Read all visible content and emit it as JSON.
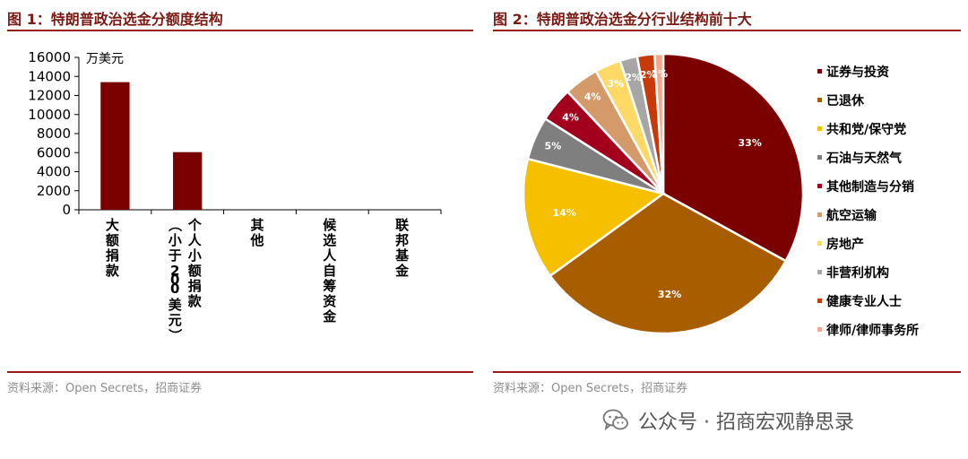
{
  "chart_data": [
    {
      "type": "bar",
      "title": "图 1：特朗普政治选金分额度结构",
      "unit_label": "万美元",
      "categories": [
        "大额捐款",
        "个人小额捐款（小于200 美元）",
        "其他",
        "候选人自筹资金",
        "联邦基金"
      ],
      "values": [
        13400,
        6050,
        0,
        0,
        0
      ],
      "ylim": [
        0,
        16000
      ],
      "yticks": [
        0,
        2000,
        4000,
        6000,
        8000,
        10000,
        12000,
        14000,
        16000
      ],
      "color": "#7b0000",
      "grid": false,
      "source": "资料来源：Open Secrets，招商证券"
    },
    {
      "type": "pie",
      "title": "图 2：特朗普政治选金分行业结构前十大",
      "labels": [
        "证券与投资",
        "已退休",
        "共和党/保守党",
        "石油与天然气",
        "其他制造与分销",
        "航空运输",
        "房地产",
        "非营利机构",
        "健康专业人士",
        "律师/律师事务所"
      ],
      "values": [
        33,
        32,
        14,
        5,
        4,
        4,
        3,
        2,
        2,
        1
      ],
      "value_labels": [
        "33%",
        "32%",
        "14%",
        "5%",
        "4%",
        "4%",
        "3%",
        "2%",
        "2%",
        "1%"
      ],
      "colors": [
        "#7b0000",
        "#a85e00",
        "#f6bf00",
        "#7f7f7f",
        "#a3001e",
        "#d49a6a",
        "#ffd966",
        "#a6a6a6",
        "#c83a0a",
        "#f4a68a"
      ],
      "legend_position": "right",
      "source": "资料来源：Open Secrets，招商证券"
    }
  ],
  "watermark": "公众号 · 招商宏观静思录"
}
